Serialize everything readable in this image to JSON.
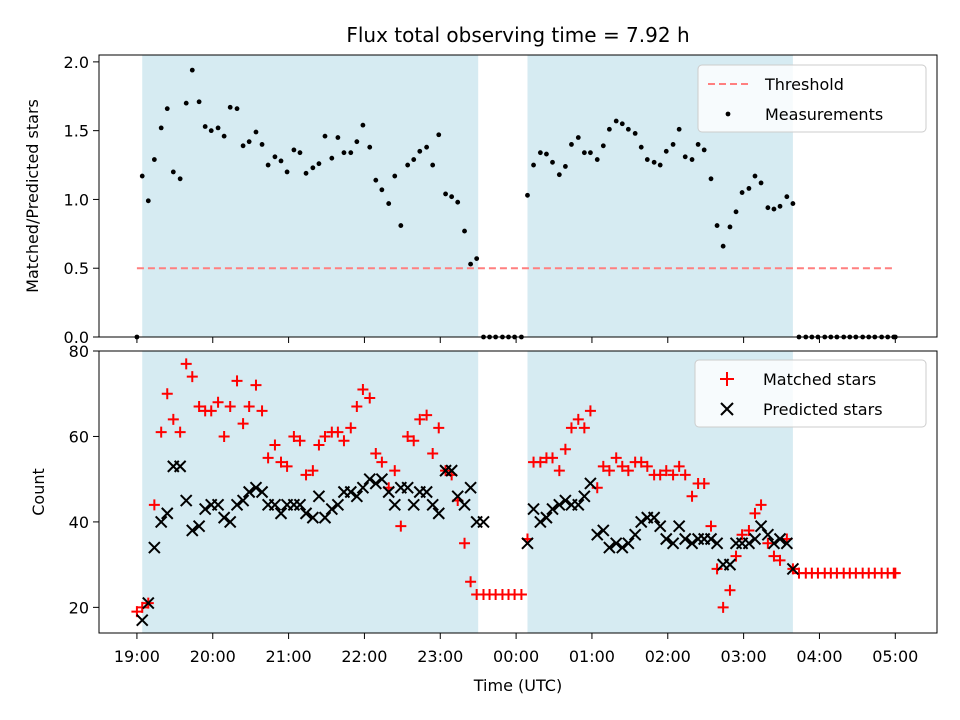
{
  "chart_data": [
    {
      "type": "scatter",
      "title": "Flux total observing time = 7.92 h",
      "xlabel": "",
      "ylabel": "Matched/Predicted stars",
      "ylim": [
        0,
        2.05
      ],
      "yticks": [
        "0.0",
        "0.5",
        "1.0",
        "1.5",
        "2.0"
      ],
      "ytick_values": [
        0,
        0.5,
        1.0,
        1.5,
        2.0
      ],
      "threshold": {
        "name": "Threshold",
        "value": 0.5,
        "x_start": 0,
        "x_end": 10,
        "color": "#ff7f7f"
      },
      "shaded_regions": [
        [
          0.07,
          4.5
        ],
        [
          5.15,
          8.65
        ]
      ],
      "legend": [
        "Threshold",
        "Measurements"
      ],
      "series": [
        {
          "name": "Measurements",
          "color": "#000000",
          "x": [
            0.0,
            0.07,
            0.15,
            0.23,
            0.32,
            0.4,
            0.48,
            0.57,
            0.65,
            0.73,
            0.82,
            0.9,
            0.98,
            1.07,
            1.15,
            1.23,
            1.32,
            1.4,
            1.48,
            1.57,
            1.65,
            1.73,
            1.82,
            1.9,
            1.98,
            2.07,
            2.15,
            2.23,
            2.32,
            2.4,
            2.48,
            2.57,
            2.65,
            2.73,
            2.82,
            2.9,
            2.98,
            3.07,
            3.15,
            3.23,
            3.32,
            3.4,
            3.48,
            3.57,
            3.65,
            3.73,
            3.82,
            3.9,
            3.98,
            4.07,
            4.15,
            4.23,
            4.32,
            4.4,
            4.48,
            4.57,
            4.65,
            4.73,
            4.82,
            4.9,
            4.98,
            5.07,
            5.15,
            5.23,
            5.32,
            5.4,
            5.48,
            5.57,
            5.65,
            5.73,
            5.82,
            5.9,
            5.98,
            6.07,
            6.15,
            6.23,
            6.32,
            6.4,
            6.48,
            6.57,
            6.65,
            6.73,
            6.82,
            6.9,
            6.98,
            7.07,
            7.15,
            7.23,
            7.32,
            7.4,
            7.48,
            7.57,
            7.65,
            7.73,
            7.82,
            7.9,
            7.98,
            8.07,
            8.15,
            8.23,
            8.32,
            8.4,
            8.48,
            8.57,
            8.65,
            8.73,
            8.82,
            8.9,
            8.98,
            9.07,
            9.15,
            9.23,
            9.32,
            9.4,
            9.48,
            9.57,
            9.65,
            9.73,
            9.82,
            9.9,
            9.98,
            10.0
          ],
          "values": [
            0.0,
            1.17,
            0.99,
            1.29,
            1.52,
            1.66,
            1.2,
            1.15,
            1.7,
            1.94,
            1.71,
            1.53,
            1.5,
            1.52,
            1.46,
            1.67,
            1.66,
            1.39,
            1.42,
            1.49,
            1.4,
            1.25,
            1.31,
            1.28,
            1.2,
            1.36,
            1.34,
            1.19,
            1.23,
            1.26,
            1.46,
            1.3,
            1.45,
            1.34,
            1.34,
            1.42,
            1.54,
            1.38,
            1.14,
            1.07,
            0.97,
            1.17,
            0.81,
            1.25,
            1.29,
            1.35,
            1.38,
            1.25,
            1.47,
            1.04,
            1.02,
            0.98,
            0.77,
            0.53,
            0.57,
            0.0,
            0.0,
            0.0,
            0.0,
            0.0,
            0.0,
            0.0,
            1.03,
            1.25,
            1.34,
            1.33,
            1.27,
            1.18,
            1.24,
            1.4,
            1.45,
            1.34,
            1.34,
            1.29,
            1.39,
            1.51,
            1.57,
            1.55,
            1.51,
            1.48,
            1.38,
            1.29,
            1.27,
            1.25,
            1.35,
            1.4,
            1.51,
            1.31,
            1.29,
            1.4,
            1.36,
            1.15,
            0.81,
            0.66,
            0.8,
            0.91,
            1.05,
            1.08,
            1.17,
            1.12,
            0.94,
            0.93,
            0.95,
            1.02,
            0.97,
            0.0,
            0.0,
            0.0,
            0.0,
            0.0,
            0.0,
            0.0,
            0.0,
            0.0,
            0.0,
            0.0,
            0.0,
            0.0,
            0.0,
            0.0,
            0.0,
            0.0
          ]
        }
      ]
    },
    {
      "type": "scatter",
      "title": "",
      "xlabel": "Time (UTC)",
      "ylabel": "Count",
      "ylim": [
        14,
        80
      ],
      "yticks": [
        "20",
        "40",
        "60",
        "80"
      ],
      "ytick_values": [
        20,
        40,
        60,
        80
      ],
      "categories": [
        "19:00",
        "20:00",
        "21:00",
        "22:00",
        "23:00",
        "00:00",
        "01:00",
        "02:00",
        "03:00",
        "04:00",
        "05:00"
      ],
      "xtick_values": [
        0,
        1,
        2,
        3,
        4,
        5,
        6,
        7,
        8,
        9,
        10
      ],
      "shaded_regions": [
        [
          0.07,
          4.5
        ],
        [
          5.15,
          8.65
        ]
      ],
      "legend": [
        "Matched stars",
        "Predicted stars"
      ],
      "series": [
        {
          "name": "Matched stars",
          "marker": "+",
          "color": "#ff0000",
          "x": [
            0.0,
            0.07,
            0.15,
            0.23,
            0.32,
            0.4,
            0.48,
            0.57,
            0.65,
            0.73,
            0.82,
            0.9,
            0.98,
            1.07,
            1.15,
            1.23,
            1.32,
            1.4,
            1.48,
            1.57,
            1.65,
            1.73,
            1.82,
            1.9,
            1.98,
            2.07,
            2.15,
            2.23,
            2.32,
            2.4,
            2.48,
            2.57,
            2.65,
            2.73,
            2.82,
            2.9,
            2.98,
            3.07,
            3.15,
            3.23,
            3.32,
            3.4,
            3.48,
            3.57,
            3.65,
            3.73,
            3.82,
            3.9,
            3.98,
            4.07,
            4.15,
            4.23,
            4.32,
            4.4,
            4.48,
            4.57,
            4.65,
            4.73,
            4.82,
            4.9,
            4.98,
            5.07,
            5.15,
            5.23,
            5.32,
            5.4,
            5.48,
            5.57,
            5.65,
            5.73,
            5.82,
            5.9,
            5.98,
            6.07,
            6.15,
            6.23,
            6.32,
            6.4,
            6.48,
            6.57,
            6.65,
            6.73,
            6.82,
            6.9,
            6.98,
            7.07,
            7.15,
            7.23,
            7.32,
            7.4,
            7.48,
            7.57,
            7.65,
            7.73,
            7.82,
            7.9,
            7.98,
            8.07,
            8.15,
            8.23,
            8.32,
            8.4,
            8.48,
            8.57,
            8.65,
            8.73,
            8.82,
            8.9,
            8.98,
            9.07,
            9.15,
            9.23,
            9.32,
            9.4,
            9.48,
            9.57,
            9.65,
            9.73,
            9.82,
            9.9,
            9.98,
            10.0
          ],
          "values": [
            19,
            20,
            21,
            44,
            61,
            70,
            64,
            61,
            77,
            74,
            67,
            66,
            66,
            68,
            60,
            67,
            73,
            63,
            67,
            72,
            66,
            55,
            58,
            54,
            53,
            60,
            59,
            51,
            52,
            58,
            60,
            61,
            61,
            59,
            62,
            67,
            71,
            69,
            56,
            54,
            48,
            52,
            39,
            60,
            59,
            64,
            65,
            56,
            62,
            52,
            51,
            45,
            35,
            26,
            23,
            23,
            23,
            23,
            23,
            23,
            23,
            23,
            36,
            54,
            54,
            55,
            55,
            52,
            57,
            62,
            64,
            62,
            66,
            48,
            53,
            52,
            55,
            53,
            52,
            54,
            54,
            53,
            51,
            51,
            52,
            51,
            53,
            51,
            46,
            49,
            49,
            39,
            29,
            20,
            24,
            32,
            37,
            38,
            42,
            44,
            35,
            32,
            31,
            36,
            29,
            28,
            28,
            28,
            28,
            28,
            28,
            28,
            28,
            28,
            28,
            28,
            28,
            28,
            28,
            28,
            28,
            28
          ]
        },
        {
          "name": "Predicted stars",
          "marker": "x",
          "color": "#000000",
          "x": [
            0.07,
            0.15,
            0.23,
            0.32,
            0.4,
            0.48,
            0.57,
            0.65,
            0.73,
            0.82,
            0.9,
            0.98,
            1.07,
            1.15,
            1.23,
            1.32,
            1.4,
            1.48,
            1.57,
            1.65,
            1.73,
            1.82,
            1.9,
            1.98,
            2.07,
            2.15,
            2.23,
            2.32,
            2.4,
            2.48,
            2.57,
            2.65,
            2.73,
            2.82,
            2.9,
            2.98,
            3.07,
            3.15,
            3.23,
            3.32,
            3.4,
            3.48,
            3.57,
            3.65,
            3.73,
            3.82,
            3.9,
            3.98,
            4.07,
            4.15,
            4.23,
            4.32,
            4.4,
            4.48,
            4.57,
            5.15,
            5.23,
            5.32,
            5.4,
            5.48,
            5.57,
            5.65,
            5.73,
            5.82,
            5.9,
            5.98,
            6.07,
            6.15,
            6.23,
            6.32,
            6.4,
            6.48,
            6.57,
            6.65,
            6.73,
            6.82,
            6.9,
            6.98,
            7.07,
            7.15,
            7.23,
            7.32,
            7.4,
            7.48,
            7.57,
            7.65,
            7.73,
            7.82,
            7.9,
            7.98,
            8.07,
            8.15,
            8.23,
            8.32,
            8.4,
            8.48,
            8.57,
            8.65
          ],
          "values": [
            17,
            21,
            34,
            40,
            42,
            53,
            53,
            45,
            38,
            39,
            43,
            44,
            44,
            41,
            40,
            44,
            45,
            47,
            48,
            47,
            44,
            44,
            42,
            44,
            44,
            44,
            42,
            41,
            46,
            41,
            43,
            44,
            47,
            47,
            46,
            48,
            50,
            49,
            50,
            47,
            44,
            48,
            48,
            44,
            47,
            47,
            44,
            42,
            52,
            52,
            46,
            44,
            48,
            40,
            40,
            35,
            43,
            40,
            41,
            43,
            44,
            45,
            44,
            44,
            46,
            49,
            37,
            38,
            34,
            35,
            34,
            35,
            37,
            40,
            41,
            41,
            39,
            36,
            35,
            39,
            36,
            35,
            36,
            36,
            36,
            35,
            30,
            30,
            35,
            35,
            35,
            36,
            39,
            37,
            35,
            36,
            35,
            29
          ]
        }
      ]
    }
  ]
}
